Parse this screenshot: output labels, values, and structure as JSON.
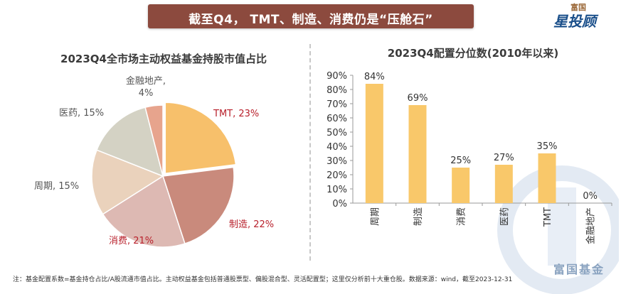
{
  "header": {
    "title": "截至Q4， TMT、制造、消费仍是“压舱石”",
    "logo_top": "富国",
    "logo_main": "星投顾"
  },
  "watermark": {
    "text": "富国基金"
  },
  "footnote": "注：基金配置系数=基金持仓占比/A股流通市值占比。主动权益基金包括普通股票型、偏股混合型、灵活配置型；这里仅分析前十大重仓股。数据来源：wind，截至2023-12-31",
  "colors": {
    "tmt": "#f7c06b",
    "manufacturing": "#c98a7c",
    "consumption": "#ddb9b3",
    "cycle": "#ead2bc",
    "medicine": "#d4d2c4",
    "finance": "#e7a48d",
    "bar": "#f9c86a",
    "label_red": "#b8202b",
    "label_gray": "#555555"
  },
  "chart_data": [
    {
      "type": "pie",
      "title": "2023Q4全市场主动权益基金持股市值占比",
      "slices": [
        {
          "label": "TMT",
          "value": 23,
          "display": "TMT, 23%"
        },
        {
          "label": "制造",
          "value": 22,
          "display": "制造, 22%"
        },
        {
          "label": "消费",
          "value": 21,
          "display": "消费, 21%"
        },
        {
          "label": "周期",
          "value": 15,
          "display": "周期, 15%"
        },
        {
          "label": "医药",
          "value": 15,
          "display": "医药, 15%"
        },
        {
          "label": "金融地产",
          "value": 4,
          "display": "金融地产,\n4%"
        }
      ]
    },
    {
      "type": "bar",
      "title": "2023Q4配置分位数(2010年以来)",
      "categories": [
        "周期",
        "制造",
        "消费",
        "医药",
        "TMT",
        "金融地产"
      ],
      "values": [
        84,
        69,
        25,
        27,
        35,
        0
      ],
      "data_labels": [
        "84%",
        "69%",
        "25%",
        "27%",
        "35%",
        "0%"
      ],
      "ylim": [
        0,
        90
      ],
      "yticks": [
        "0%",
        "10%",
        "20%",
        "30%",
        "40%",
        "50%",
        "60%",
        "70%",
        "80%",
        "90%"
      ]
    }
  ]
}
